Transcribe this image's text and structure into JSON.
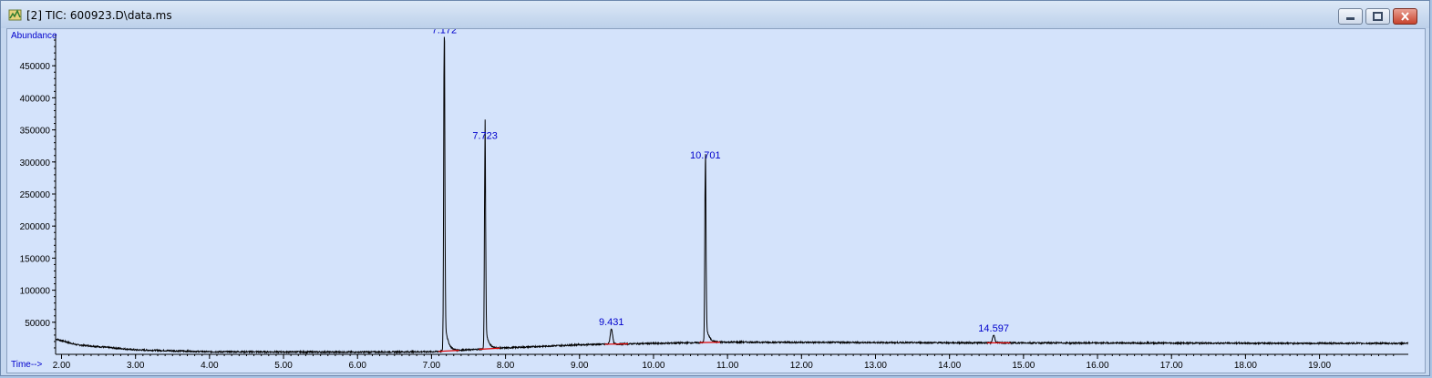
{
  "window": {
    "title": "[2] TIC: 600923.D\\data.ms",
    "controls": [
      "minimize",
      "restore",
      "close"
    ]
  },
  "colors": {
    "background": "#d4e3fb",
    "trace": "#000000",
    "peak_label": "#0000cc",
    "axis_label": "#0000cc",
    "baseline_marks": "#e00000"
  },
  "chart_data": {
    "type": "line",
    "title": "TIC: 600923.D\\data.ms",
    "ylabel": "Abundance",
    "xlabel": "Time-->",
    "xlim": [
      1.92,
      20.2
    ],
    "ylim": [
      0,
      500000
    ],
    "x_ticks": [
      "2.00",
      "3.00",
      "4.00",
      "5.00",
      "6.00",
      "7.00",
      "8.00",
      "9.00",
      "10.00",
      "11.00",
      "12.00",
      "13.00",
      "14.00",
      "15.00",
      "16.00",
      "17.00",
      "18.00",
      "19.00"
    ],
    "y_ticks": [
      "50000",
      "100000",
      "150000",
      "200000",
      "250000",
      "300000",
      "350000",
      "400000",
      "450000"
    ],
    "peaks": [
      {
        "label": "7.172",
        "rt": 7.172,
        "abundance": 495000
      },
      {
        "label": "7.723",
        "rt": 7.723,
        "abundance": 330000
      },
      {
        "label": "9.431",
        "rt": 9.431,
        "abundance": 40000
      },
      {
        "label": "10.701",
        "rt": 10.701,
        "abundance": 300000
      },
      {
        "label": "14.597",
        "rt": 14.597,
        "abundance": 30000
      }
    ],
    "baseline": [
      {
        "x": 1.92,
        "y": 24000
      },
      {
        "x": 2.2,
        "y": 15000
      },
      {
        "x": 3.0,
        "y": 7000
      },
      {
        "x": 4.0,
        "y": 4000
      },
      {
        "x": 6.0,
        "y": 3500
      },
      {
        "x": 7.0,
        "y": 4000
      },
      {
        "x": 8.0,
        "y": 10000
      },
      {
        "x": 9.0,
        "y": 15000
      },
      {
        "x": 10.0,
        "y": 17000
      },
      {
        "x": 11.0,
        "y": 19000
      },
      {
        "x": 14.0,
        "y": 18000
      },
      {
        "x": 20.2,
        "y": 17000
      }
    ]
  }
}
